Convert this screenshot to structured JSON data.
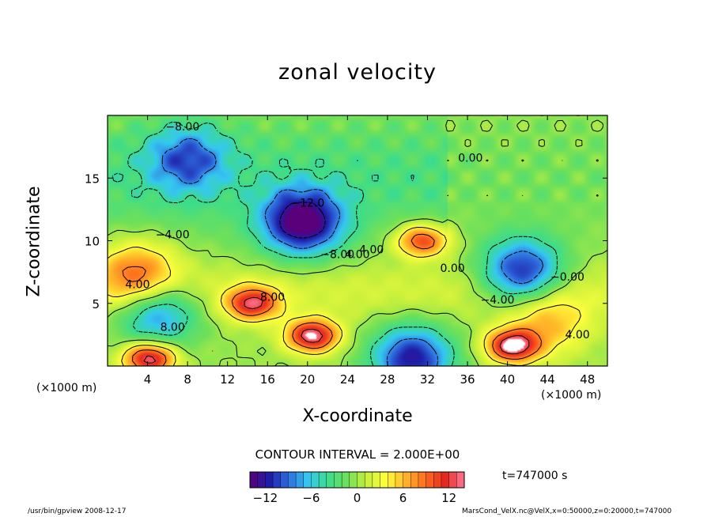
{
  "chart_data": {
    "type": "heatmap",
    "title": "zonal velocity",
    "xlabel": "X-coordinate",
    "ylabel": "Z-coordinate",
    "x_unit_left": "(×1000 m)",
    "x_unit_right": "(×1000 m)",
    "xlim": [
      0,
      50
    ],
    "ylim": [
      0,
      20
    ],
    "x_ticks": [
      4,
      8,
      12,
      16,
      20,
      24,
      28,
      32,
      36,
      40,
      44,
      48
    ],
    "y_ticks": [
      5,
      10,
      15
    ],
    "colorbar": {
      "range": [
        -14,
        14
      ],
      "ticks": [
        -12,
        -6,
        0,
        6,
        12
      ],
      "tick_labels": [
        "−12",
        "−6",
        "0",
        "6",
        "12"
      ],
      "colors_low_to_high": [
        "#5a007a",
        "#1e1ea8",
        "#2f6fe0",
        "#35c8f0",
        "#3cdc8c",
        "#6ee05a",
        "#c8f03c",
        "#ffff3c",
        "#ffb428",
        "#ff6e1e",
        "#e6281e",
        "#ff7a9a"
      ]
    },
    "features": [
      {
        "kind": "min",
        "x": 19.5,
        "z": 11.5,
        "value": -14,
        "label": "−12.0"
      },
      {
        "kind": "min",
        "x": 41.5,
        "z": 7.5,
        "value": -12
      },
      {
        "kind": "min",
        "x": 5.0,
        "z": 4.2,
        "value": -9
      },
      {
        "kind": "min",
        "x": 30.5,
        "z": 0.6,
        "value": -12
      },
      {
        "kind": "min",
        "x": 8.0,
        "z": 16.5,
        "value": -8
      },
      {
        "kind": "max",
        "x": 31.5,
        "z": 10.0,
        "value": 11
      },
      {
        "kind": "max",
        "x": 20.5,
        "z": 2.4,
        "value": 14
      },
      {
        "kind": "max",
        "x": 40.5,
        "z": 1.6,
        "value": 14
      },
      {
        "kind": "max",
        "x": 4.2,
        "z": 0.6,
        "value": 14
      },
      {
        "kind": "max",
        "x": 14.5,
        "z": 5.0,
        "value": 12
      },
      {
        "kind": "max",
        "x": 3.0,
        "z": 7.3,
        "value": 9
      },
      {
        "kind": "max",
        "x": 44.0,
        "z": 3.5,
        "value": 6
      }
    ],
    "contour_labels": [
      {
        "text": "−8.00",
        "x": 7.5,
        "z": 18.8
      },
      {
        "text": "−12.0",
        "x": 20.0,
        "z": 12.7
      },
      {
        "text": "−8.00",
        "x": 23.0,
        "z": 8.6
      },
      {
        "text": "4.00",
        "x": 25.0,
        "z": 8.6
      },
      {
        "text": "4.00",
        "x": 26.4,
        "z": 9.0
      },
      {
        "text": "−4.00",
        "x": 6.5,
        "z": 10.2
      },
      {
        "text": "4.00",
        "x": 3.0,
        "z": 6.2
      },
      {
        "text": "8.00",
        "x": 16.5,
        "z": 5.2
      },
      {
        "text": "8.00",
        "x": 6.5,
        "z": 2.8
      },
      {
        "text": "0.00",
        "x": 36.3,
        "z": 16.3
      },
      {
        "text": "0.00",
        "x": 34.5,
        "z": 7.5
      },
      {
        "text": "−0.00",
        "x": 46.0,
        "z": 6.8
      },
      {
        "text": "−4.00",
        "x": 39.0,
        "z": 5.0
      },
      {
        "text": "4.00",
        "x": 47.0,
        "z": 2.2
      }
    ]
  },
  "contour_interval_text": "CONTOUR INTERVAL = 2.000E+00",
  "time_text": "t=747000 s",
  "footer_left": "/usr/bin/gpview   2008-12-17",
  "footer_right": "MarsCond_VelX.nc@VelX,x=0:50000,z=0:20000,t=747000"
}
